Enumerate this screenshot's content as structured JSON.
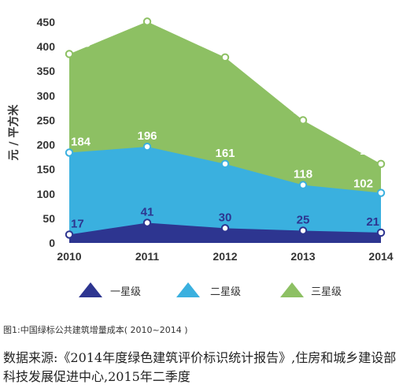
{
  "chart_data": {
    "type": "area",
    "x": [
      "2010",
      "2011",
      "2012",
      "2013",
      "2014"
    ],
    "ylabel": "元 / 平方米",
    "ylim": [
      0,
      450
    ],
    "yticks": [
      0,
      50,
      100,
      150,
      200,
      250,
      300,
      350,
      400,
      450
    ],
    "grid": false,
    "legend_position": "bottom",
    "stacked": false,
    "series": [
      {
        "name": "三星级",
        "values": [
          385,
          451,
          378,
          250,
          161
        ],
        "color": "#8dc063"
      },
      {
        "name": "二星级",
        "values": [
          184,
          196,
          161,
          118,
          102
        ],
        "color": "#3ab0df"
      },
      {
        "name": "一星级",
        "values": [
          17,
          41,
          30,
          25,
          21
        ],
        "color": "#2d3590"
      }
    ]
  },
  "caption": "图1:中国绿标公共建筑增量成本( 2010~2014 )",
  "source": "数据来源:《2014年度绿色建筑评价标识统计报告》,住房和城乡建设部科技发展促进中心,2015年二季度"
}
